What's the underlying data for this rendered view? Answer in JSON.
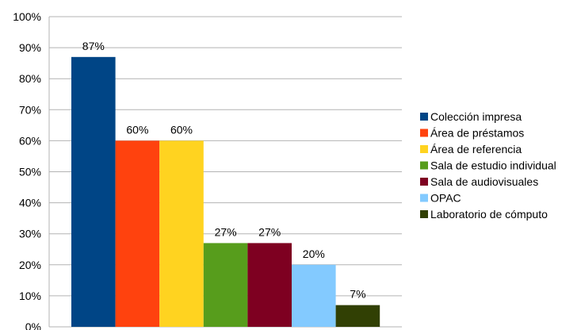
{
  "chart_data": {
    "type": "bar",
    "title": "",
    "xlabel": "",
    "ylabel": "",
    "ylim": [
      0,
      100
    ],
    "y_ticks": [
      "0%",
      "10%",
      "20%",
      "30%",
      "40%",
      "50%",
      "60%",
      "70%",
      "80%",
      "90%",
      "100%"
    ],
    "grid": true,
    "legend_position": "right",
    "series": [
      {
        "name": "Colección impresa",
        "value": 87,
        "label": "87%",
        "color": "#004586"
      },
      {
        "name": "Área de préstamos",
        "value": 60,
        "label": "60%",
        "color": "#ff420e"
      },
      {
        "name": "Área de referencia",
        "value": 60,
        "label": "60%",
        "color": "#ffd320"
      },
      {
        "name": "Sala de estudio individual",
        "value": 27,
        "label": "27%",
        "color": "#579d1c"
      },
      {
        "name": "Sala de audiovisuales",
        "value": 27,
        "label": "27%",
        "color": "#7e0021"
      },
      {
        "name": "OPAC",
        "value": 20,
        "label": "20%",
        "color": "#83caff"
      },
      {
        "name": "Laboratorio de cómputo",
        "value": 7,
        "label": "7%",
        "color": "#314004"
      }
    ]
  }
}
